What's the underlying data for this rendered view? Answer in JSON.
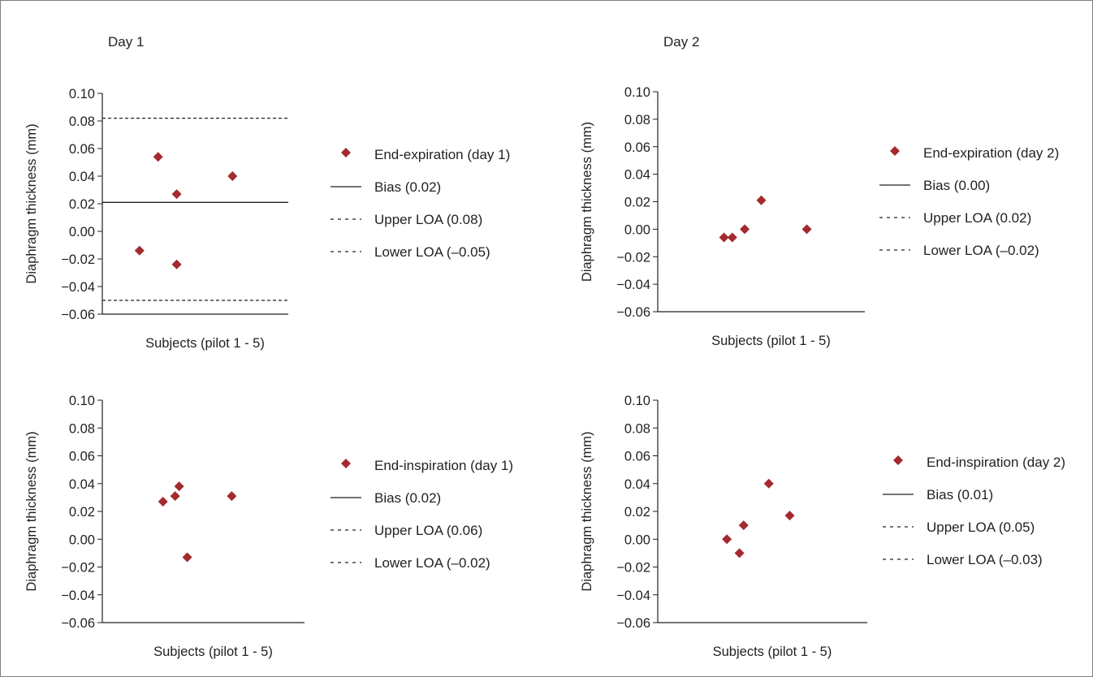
{
  "headers": {
    "day1": "Day 1",
    "day2": "Day 2"
  },
  "colors": {
    "marker": "#a32a2e",
    "axis": "#231f20",
    "frame": "#7f7f7f"
  },
  "chart_data": [
    {
      "type": "scatter",
      "title": "",
      "xlabel": "Subjects (pilot 1 - 5)",
      "ylabel": "Diaphragm thickness (mm)",
      "ylim": [
        -0.06,
        0.1
      ],
      "yticks": [
        "0.10",
        "0.08",
        "0.06",
        "0.04",
        "0.02",
        "0.00",
        "−0.02",
        "−0.04",
        "−0.06"
      ],
      "points": [
        {
          "x": 2,
          "y": -0.014
        },
        {
          "x": 3,
          "y": 0.054
        },
        {
          "x": 4,
          "y": 0.027
        },
        {
          "x": 4,
          "y": -0.024
        },
        {
          "x": 7,
          "y": 0.04
        }
      ],
      "lines": {
        "bias": 0.021,
        "upper": 0.082,
        "lower": -0.05
      },
      "legend": [
        {
          "style": "marker",
          "label": "End-expiration (day 1)"
        },
        {
          "style": "solid",
          "label": "Bias (0.02)"
        },
        {
          "style": "dashed",
          "label": "Upper LOA (0.08)"
        },
        {
          "style": "dashed",
          "label": "Lower LOA (–0.05)"
        }
      ]
    },
    {
      "type": "scatter",
      "title": "",
      "xlabel": "Subjects (pilot 1 - 5)",
      "ylabel": "Diaphragm thickness (mm)",
      "ylim": [
        -0.06,
        0.1
      ],
      "yticks": [
        "0.10",
        "0.08",
        "0.06",
        "0.04",
        "0.02",
        "0.00",
        "−0.02",
        "−0.04",
        "−0.06"
      ],
      "points": [
        {
          "x": 3.2,
          "y": -0.006
        },
        {
          "x": 3.6,
          "y": -0.006
        },
        {
          "x": 4.2,
          "y": 0.0
        },
        {
          "x": 5.0,
          "y": 0.021
        },
        {
          "x": 7.2,
          "y": 0.0
        }
      ],
      "lines": {},
      "legend": [
        {
          "style": "marker",
          "label": "End-expiration (day 2)"
        },
        {
          "style": "solid",
          "label": "Bias (0.00)"
        },
        {
          "style": "dashed",
          "label": "Upper LOA (0.02)"
        },
        {
          "style": "dashed",
          "label": "Lower LOA (–0.02)"
        }
      ]
    },
    {
      "type": "scatter",
      "title": "",
      "xlabel": "Subjects (pilot 1 - 5)",
      "ylabel": "Diaphragm thickness (mm)",
      "ylim": [
        -0.06,
        0.1
      ],
      "yticks": [
        "0.10",
        "0.08",
        "0.06",
        "0.04",
        "0.02",
        "0.00",
        "−0.02",
        "−0.04",
        "−0.06"
      ],
      "points": [
        {
          "x": 3.0,
          "y": 0.027
        },
        {
          "x": 3.6,
          "y": 0.031
        },
        {
          "x": 3.8,
          "y": 0.038
        },
        {
          "x": 4.2,
          "y": -0.013
        },
        {
          "x": 6.4,
          "y": 0.031
        }
      ],
      "lines": {},
      "legend": [
        {
          "style": "marker",
          "label": "End-inspiration (day 1)"
        },
        {
          "style": "solid",
          "label": "Bias (0.02)"
        },
        {
          "style": "dashed",
          "label": "Upper LOA (0.06)"
        },
        {
          "style": "dashed",
          "label": "Lower LOA (–0.02)"
        }
      ]
    },
    {
      "type": "scatter",
      "title": "",
      "xlabel": "Subjects (pilot 1 - 5)",
      "ylabel": "Diaphragm thickness (mm)",
      "ylim": [
        -0.06,
        0.1
      ],
      "yticks": [
        "0.10",
        "0.08",
        "0.06",
        "0.04",
        "0.02",
        "0.00",
        "−0.02",
        "−0.04",
        "−0.06"
      ],
      "points": [
        {
          "x": 3.3,
          "y": 0.0
        },
        {
          "x": 3.9,
          "y": -0.01
        },
        {
          "x": 4.1,
          "y": 0.01
        },
        {
          "x": 5.3,
          "y": 0.04
        },
        {
          "x": 6.3,
          "y": 0.017
        }
      ],
      "lines": {},
      "legend": [
        {
          "style": "marker",
          "label": "End-inspiration (day 2)"
        },
        {
          "style": "solid",
          "label": "Bias (0.01)"
        },
        {
          "style": "dashed",
          "label": "Upper LOA (0.05)"
        },
        {
          "style": "dashed",
          "label": "Lower LOA (–0.03)"
        }
      ]
    }
  ]
}
